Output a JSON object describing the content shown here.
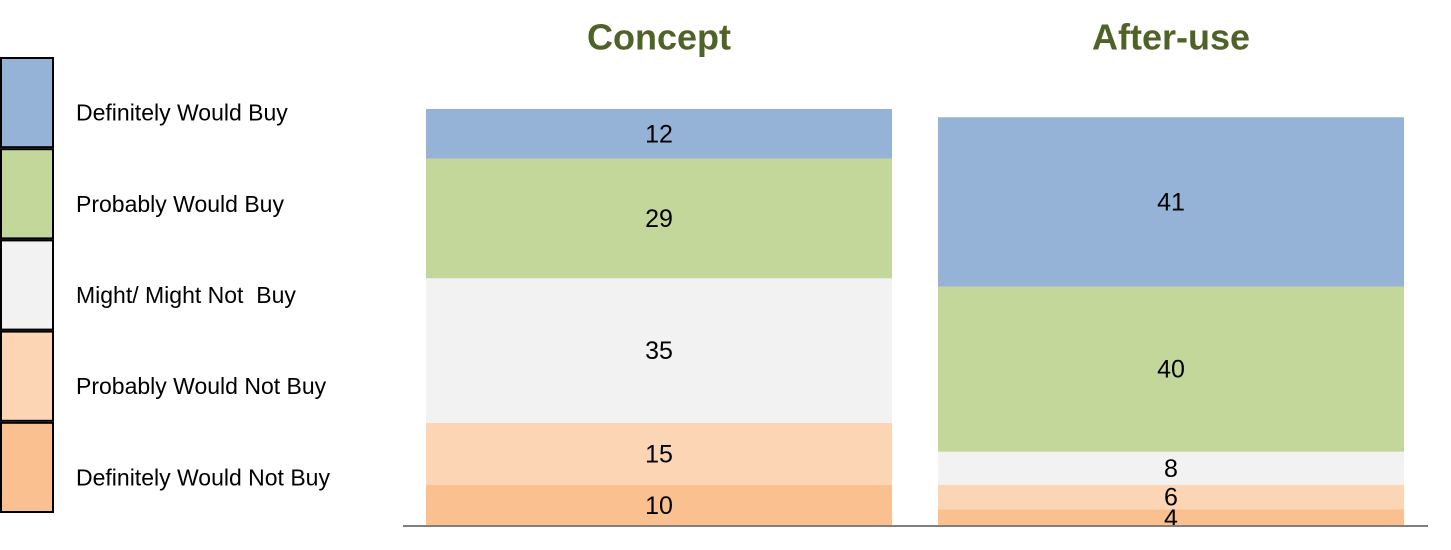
{
  "chart_data": {
    "type": "stacked-bar",
    "categories": [
      "Concept",
      "After-use"
    ],
    "series": [
      {
        "name": "Definitely Would Buy",
        "color": "#95b3d7",
        "values": [
          12,
          41
        ]
      },
      {
        "name": "Probably Would Buy",
        "color": "#c4d79b",
        "values": [
          29,
          40
        ]
      },
      {
        "name": "Might/ Might Not  Buy",
        "color": "#f2f2f2",
        "values": [
          35,
          8
        ]
      },
      {
        "name": "Probably Would Not Buy",
        "color": "#fcd5b5",
        "values": [
          15,
          6
        ]
      },
      {
        "name": "Definitely Would Not Buy",
        "color": "#fac090",
        "values": [
          10,
          4
        ]
      }
    ],
    "legend": "left"
  }
}
